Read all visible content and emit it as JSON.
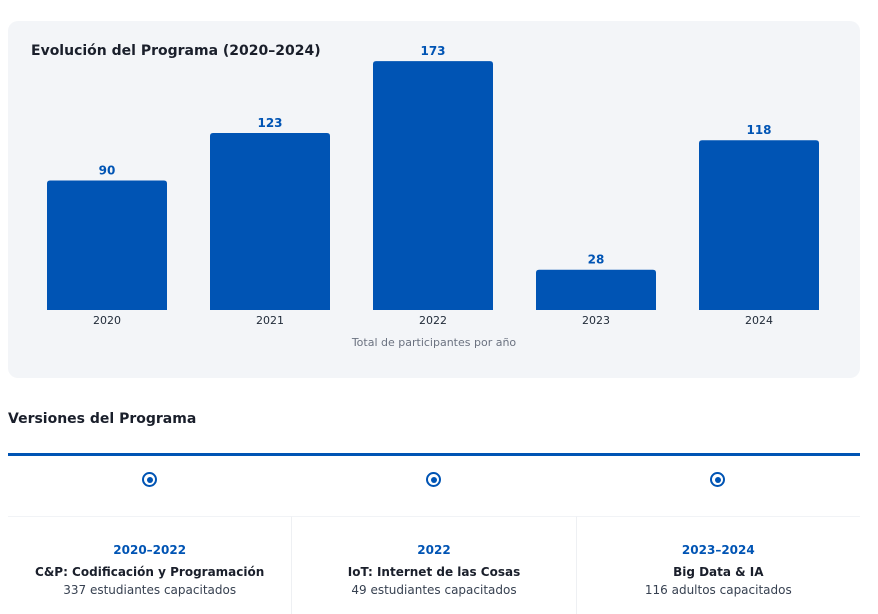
{
  "chart_data": {
    "type": "bar",
    "title": "Evolución del Programa (2020–2024)",
    "categories": [
      "2020",
      "2021",
      "2022",
      "2023",
      "2024"
    ],
    "values": [
      90,
      123,
      173,
      28,
      118
    ],
    "caption": "Total de participantes por año",
    "ylim": [
      0,
      180
    ],
    "grid": false,
    "bar_color": "#0054b4",
    "label_color": "#0054b4"
  },
  "versions": {
    "title": "Versiones del Programa",
    "accent_color": "#0054b4",
    "items": [
      {
        "years": "2020–2022",
        "name": "C&P: Codificación y Programación",
        "desc": "337 estudiantes capacitados"
      },
      {
        "years": "2022",
        "name": "IoT: Internet de las Cosas",
        "desc": "49 estudiantes capacitados"
      },
      {
        "years": "2023–2024",
        "name": "Big Data & IA",
        "desc": "116 adultos capacitados"
      }
    ]
  }
}
